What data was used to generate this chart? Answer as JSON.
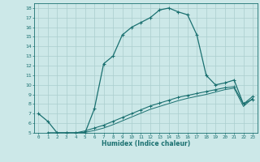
{
  "xlabel": "Humidex (Indice chaleur)",
  "bg_color": "#cce8e8",
  "grid_color": "#aacece",
  "line_color": "#1a7070",
  "xlim": [
    -0.5,
    23.5
  ],
  "ylim": [
    5,
    18.5
  ],
  "xticks": [
    0,
    1,
    2,
    3,
    4,
    5,
    6,
    7,
    8,
    9,
    10,
    11,
    12,
    13,
    14,
    15,
    16,
    17,
    18,
    19,
    20,
    21,
    22,
    23
  ],
  "yticks": [
    5,
    6,
    7,
    8,
    9,
    10,
    11,
    12,
    13,
    14,
    15,
    16,
    17,
    18
  ],
  "curve1_x": [
    0,
    1,
    2,
    3,
    4,
    5,
    6,
    7,
    8,
    9,
    10,
    11,
    12,
    13,
    14,
    15,
    16,
    17,
    18,
    19,
    20,
    21,
    22,
    23
  ],
  "curve1_y": [
    7.0,
    6.2,
    5.0,
    5.0,
    5.0,
    5.0,
    7.5,
    12.2,
    13.0,
    15.2,
    16.0,
    16.5,
    17.0,
    17.8,
    18.0,
    17.6,
    17.3,
    15.2,
    11.0,
    10.0,
    10.2,
    10.5,
    8.0,
    8.5
  ],
  "curve2_x": [
    1,
    2,
    3,
    4,
    5,
    6,
    7,
    8,
    9,
    10,
    11,
    12,
    13,
    14,
    15,
    16,
    17,
    18,
    19,
    20,
    21,
    22,
    23
  ],
  "curve2_y": [
    5.0,
    5.0,
    5.0,
    5.0,
    5.2,
    5.5,
    5.8,
    6.2,
    6.6,
    7.0,
    7.4,
    7.8,
    8.1,
    8.4,
    8.7,
    8.9,
    9.1,
    9.3,
    9.5,
    9.7,
    9.8,
    8.0,
    8.8
  ],
  "curve3_x": [
    1,
    2,
    3,
    4,
    5,
    6,
    7,
    8,
    9,
    10,
    11,
    12,
    13,
    14,
    15,
    16,
    17,
    18,
    19,
    20,
    21,
    22,
    23
  ],
  "curve3_y": [
    5.0,
    5.0,
    5.0,
    5.0,
    5.05,
    5.25,
    5.5,
    5.85,
    6.25,
    6.65,
    7.05,
    7.45,
    7.75,
    8.05,
    8.35,
    8.6,
    8.8,
    9.0,
    9.25,
    9.5,
    9.65,
    7.75,
    8.6
  ]
}
